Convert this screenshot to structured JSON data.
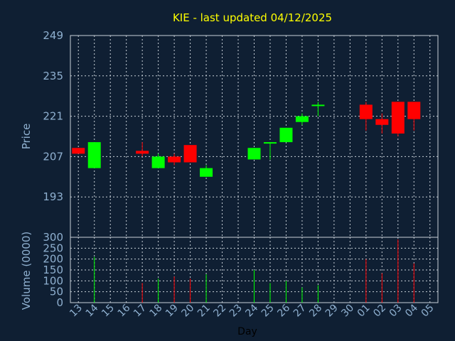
{
  "title": "KIE - last updated 04/12/2025",
  "colors": {
    "background": "#0f1f33",
    "up": "#00ff00",
    "down": "#ff0000",
    "title": "#ffff00",
    "axis_text": "#8fb0d0"
  },
  "chart_data": [
    {
      "type": "candlestick",
      "ylabel": "Price",
      "ylim": [
        179,
        249
      ],
      "yticks": [
        "249",
        "235",
        "221",
        "207",
        "193"
      ],
      "grid": true,
      "candles": [
        {
          "day": "13",
          "open": 210,
          "close": 208,
          "high": 210,
          "low": 208
        },
        {
          "day": "14",
          "open": 203,
          "close": 212,
          "high": 212,
          "low": 203
        },
        {
          "day": "17",
          "open": 209,
          "close": 208,
          "high": 212,
          "low": 207
        },
        {
          "day": "18",
          "open": 203,
          "close": 207,
          "high": 208,
          "low": 203
        },
        {
          "day": "19",
          "open": 207,
          "close": 205,
          "high": 208,
          "low": 204
        },
        {
          "day": "20",
          "open": 211,
          "close": 205,
          "high": 211,
          "low": 205
        },
        {
          "day": "21",
          "open": 200,
          "close": 203,
          "high": 204,
          "low": 200
        },
        {
          "day": "24",
          "open": 206,
          "close": 210,
          "high": 210,
          "low": 206
        },
        {
          "day": "25",
          "open": 212,
          "close": 212,
          "high": 212,
          "low": 206
        },
        {
          "day": "26",
          "open": 212,
          "close": 217,
          "high": 217,
          "low": 212
        },
        {
          "day": "27",
          "open": 219,
          "close": 221,
          "high": 222,
          "low": 218
        },
        {
          "day": "28",
          "open": 225,
          "close": 225,
          "high": 226,
          "low": 221
        },
        {
          "day": "01",
          "open": 225,
          "close": 220,
          "high": 226,
          "low": 216
        },
        {
          "day": "02",
          "open": 220,
          "close": 218,
          "high": 222,
          "low": 215
        },
        {
          "day": "03",
          "open": 226,
          "close": 215,
          "high": 226,
          "low": 214
        },
        {
          "day": "04",
          "open": 226,
          "close": 220,
          "high": 226,
          "low": 216
        }
      ]
    },
    {
      "type": "bar",
      "ylabel": "Volume (0000)",
      "xlabel": "Day",
      "ylim": [
        0,
        300
      ],
      "yticks": [
        "300",
        "250",
        "200",
        "150",
        "100",
        "50",
        "0"
      ],
      "grid": true,
      "categories": [
        "13",
        "14",
        "15",
        "16",
        "17",
        "18",
        "19",
        "20",
        "21",
        "22",
        "23",
        "24",
        "25",
        "26",
        "27",
        "28",
        "29",
        "30",
        "01",
        "02",
        "03",
        "04",
        "05"
      ],
      "values": [
        0,
        210,
        0,
        0,
        90,
        110,
        120,
        110,
        130,
        0,
        0,
        150,
        90,
        100,
        70,
        80,
        0,
        0,
        200,
        135,
        290,
        180,
        0
      ],
      "directions": [
        "down",
        "up",
        "",
        "",
        "down",
        "up",
        "down",
        "down",
        "up",
        "",
        "",
        "up",
        "up",
        "up",
        "up",
        "up",
        "",
        "",
        "down",
        "down",
        "down",
        "down",
        ""
      ]
    }
  ]
}
